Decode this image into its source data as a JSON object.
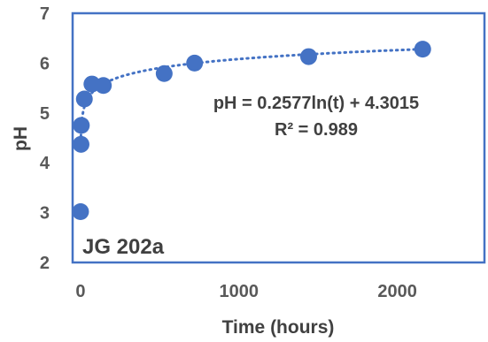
{
  "chart_data": {
    "type": "scatter",
    "title": "",
    "xlabel": "Time (hours)",
    "ylabel": "pH",
    "xlim": [
      -50,
      2550
    ],
    "ylim": [
      2,
      7
    ],
    "xticks": [
      0,
      1000,
      2000
    ],
    "yticks": [
      2,
      3,
      4,
      5,
      6,
      7
    ],
    "x_tick_labels": [
      "0",
      "1000",
      "2000"
    ],
    "y_tick_labels": [
      "2",
      "3",
      "4",
      "5",
      "6",
      "7"
    ],
    "grid": false,
    "legend": "none",
    "annotation_label": "JG 202a",
    "series": [
      {
        "x": [
          0,
          3,
          5,
          24,
          72,
          144,
          528,
          720,
          1440,
          2160
        ],
        "y": [
          3.02,
          4.37,
          4.75,
          5.28,
          5.58,
          5.55,
          5.79,
          6.0,
          6.13,
          6.28
        ]
      }
    ],
    "trendline": {
      "type": "logarithmic",
      "a": 0.2577,
      "b": 4.3015,
      "equation_label": "pH = 0.2577ln(t) + 4.3015",
      "r2_label": "R² = 0.989"
    },
    "colors": {
      "marker": "#4472C4",
      "frame": "#4472C4",
      "trendline": "#4472C4",
      "text": "#404040"
    }
  }
}
